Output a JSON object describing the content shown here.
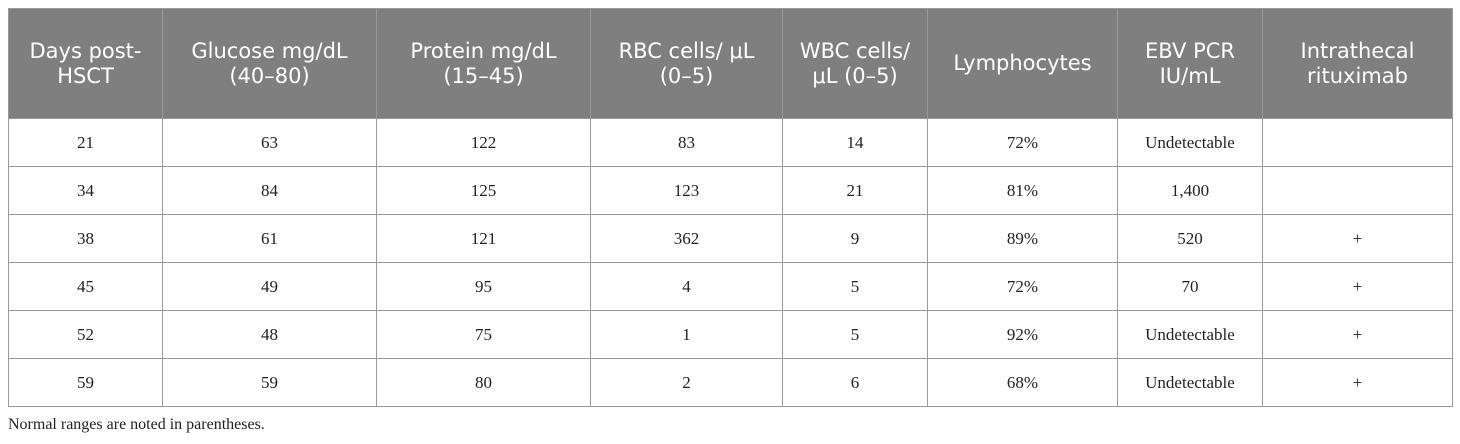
{
  "table": {
    "header": [
      "Days post-HSCT",
      "Glucose mg/dL (40–80)",
      "Protein mg/dL (15–45)",
      "RBC cells/ μL (0–5)",
      "WBC cells/ μL (0–5)",
      "Lymphocytes",
      "EBV PCR IU/mL",
      "Intrathecal rituximab"
    ],
    "rows": [
      [
        "21",
        "63",
        "122",
        "83",
        "14",
        "72%",
        "Undetectable",
        null
      ],
      [
        "34",
        "84",
        "125",
        "123",
        "21",
        "81%",
        "1,400",
        null
      ],
      [
        "38",
        "61",
        "121",
        "362",
        "9",
        "89%",
        "520",
        "+"
      ],
      [
        "45",
        "49",
        "95",
        "4",
        "5",
        "72%",
        "70",
        "+"
      ],
      [
        "52",
        "48",
        "75",
        "1",
        "5",
        "92%",
        "Undetectable",
        "+"
      ],
      [
        "59",
        "59",
        "80",
        "2",
        "6",
        "68%",
        "Undetectable",
        "+"
      ]
    ]
  },
  "footnote": "Normal ranges are noted in parentheses."
}
